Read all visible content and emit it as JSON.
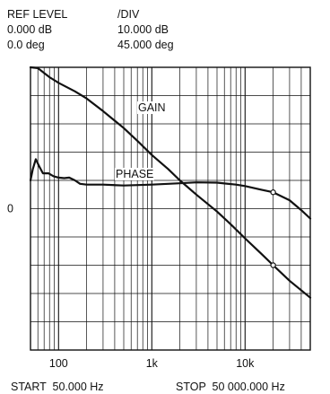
{
  "header": {
    "col1_title": "REF LEVEL",
    "col2_title": "/DIV",
    "gain_ref": "0.000 dB",
    "gain_div": "10.000 dB",
    "phase_ref": "0.0 deg",
    "phase_div": "45.000 deg"
  },
  "footer": {
    "start": "START  50.000 Hz",
    "stop": "STOP  50 000.000 Hz"
  },
  "chart_data": {
    "type": "line",
    "x_scale": "log",
    "xlim": [
      50,
      50000
    ],
    "x_tick_labels": [
      {
        "value": 100,
        "label": "100"
      },
      {
        "value": 1000,
        "label": "1k"
      },
      {
        "value": 10000,
        "label": "10k"
      }
    ],
    "y_divisions": 10,
    "y_reference_label": "0",
    "y_reference_division": 5,
    "grid": true,
    "series": [
      {
        "name": "GAIN",
        "y_unit": "divisions from top",
        "points": [
          [
            50,
            0.0
          ],
          [
            60,
            0.03
          ],
          [
            80,
            0.35
          ],
          [
            100,
            0.55
          ],
          [
            150,
            0.85
          ],
          [
            200,
            1.1
          ],
          [
            300,
            1.55
          ],
          [
            500,
            2.15
          ],
          [
            700,
            2.6
          ],
          [
            1000,
            3.1
          ],
          [
            1500,
            3.6
          ],
          [
            2000,
            4.0
          ],
          [
            3000,
            4.5
          ],
          [
            5000,
            5.1
          ],
          [
            7000,
            5.55
          ],
          [
            10000,
            6.05
          ],
          [
            15000,
            6.6
          ],
          [
            20000,
            7.0
          ],
          [
            30000,
            7.55
          ],
          [
            50000,
            8.15
          ]
        ],
        "markers": [
          [
            20000,
            7.0
          ]
        ]
      },
      {
        "name": "PHASE",
        "y_unit": "divisions from top",
        "points": [
          [
            50,
            4.0
          ],
          [
            53,
            3.6
          ],
          [
            57,
            3.25
          ],
          [
            62,
            3.5
          ],
          [
            68,
            3.75
          ],
          [
            78,
            3.75
          ],
          [
            88,
            3.85
          ],
          [
            100,
            3.9
          ],
          [
            115,
            3.92
          ],
          [
            130,
            3.9
          ],
          [
            150,
            4.0
          ],
          [
            170,
            4.12
          ],
          [
            200,
            4.15
          ],
          [
            300,
            4.15
          ],
          [
            500,
            4.18
          ],
          [
            1000,
            4.15
          ],
          [
            2000,
            4.1
          ],
          [
            3000,
            4.07
          ],
          [
            5000,
            4.08
          ],
          [
            8000,
            4.15
          ],
          [
            10000,
            4.2
          ],
          [
            15000,
            4.33
          ],
          [
            20000,
            4.42
          ],
          [
            30000,
            4.7
          ],
          [
            40000,
            5.05
          ],
          [
            50000,
            5.35
          ]
        ],
        "markers": [
          [
            20000,
            4.42
          ]
        ]
      }
    ],
    "annotations": [
      "GAIN",
      "PHASE"
    ]
  }
}
